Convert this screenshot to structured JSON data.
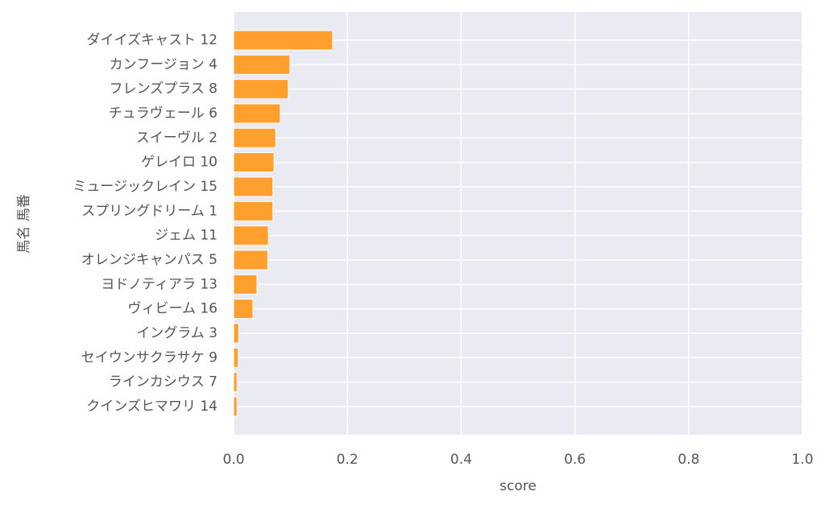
{
  "chart_data": {
    "type": "barh",
    "categories": [
      "ダイイズキャスト 12",
      "カンフージョン 4",
      "フレンズプラス 8",
      "チュラヴェール 6",
      "スイーヴル 2",
      "ゲレイロ 10",
      "ミュージックレイン 15",
      "スプリングドリーム 1",
      "ジェム 11",
      "オレンジキャンパス 5",
      "ヨドノティアラ 13",
      "ヴィビーム 16",
      "イングラム 3",
      "セイウンサクラサケ 9",
      "ラインカシウス 7",
      "クインズヒマワリ 14"
    ],
    "values": [
      0.174,
      0.099,
      0.096,
      0.082,
      0.074,
      0.071,
      0.069,
      0.069,
      0.061,
      0.06,
      0.041,
      0.034,
      0.009,
      0.008,
      0.006,
      0.006
    ],
    "color": "#ff9f2e",
    "xlim": [
      0,
      1
    ],
    "xticks": [
      {
        "value": 0,
        "label": "0.0"
      },
      0.2,
      0.4,
      0.6,
      0.8,
      {
        "value": 1,
        "label": "1.0"
      }
    ],
    "xlabel": "score",
    "ylabel": "馬名 馬番",
    "grid": true
  }
}
